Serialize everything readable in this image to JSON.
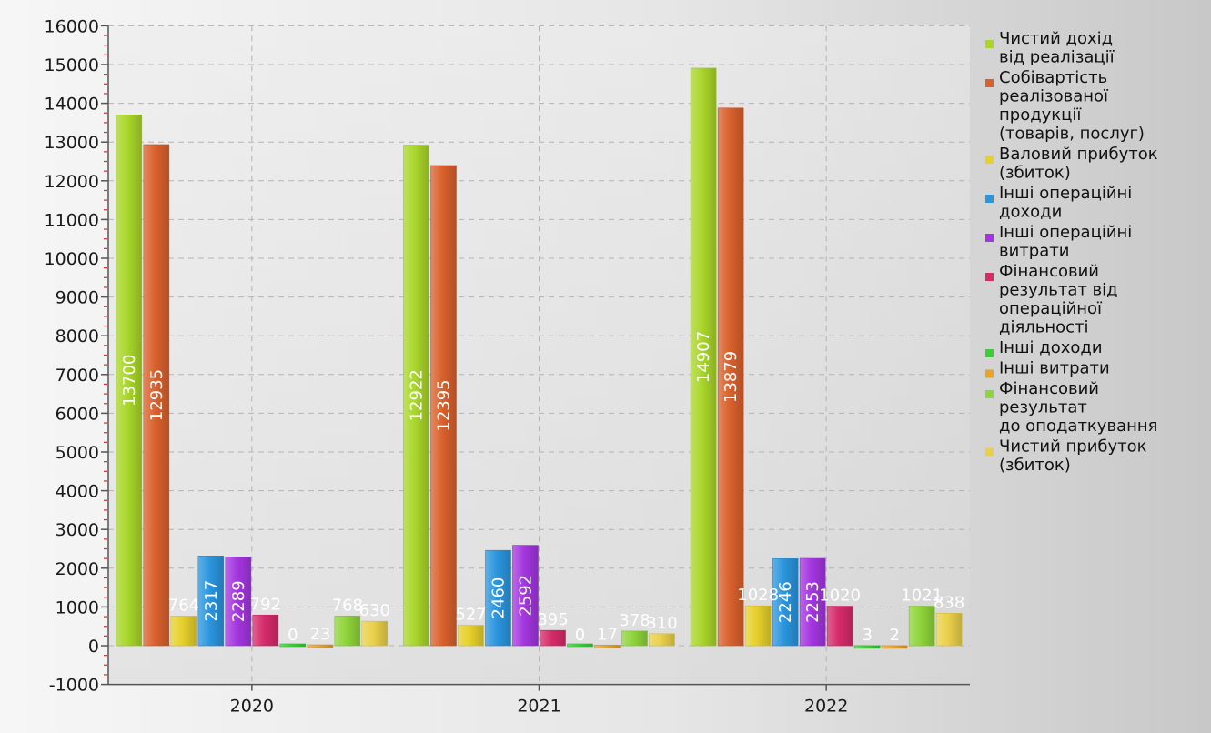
{
  "chart_data": {
    "type": "bar",
    "categories": [
      "2020",
      "2021",
      "2022"
    ],
    "ylim": [
      -1000,
      16000
    ],
    "yticks": [
      -1000,
      0,
      1000,
      2000,
      3000,
      4000,
      5000,
      6000,
      7000,
      8000,
      9000,
      10000,
      11000,
      12000,
      13000,
      14000,
      15000,
      16000
    ],
    "grid": true,
    "legend_position": "right",
    "series": [
      {
        "name": "Чистий дохід\nвід реалізації",
        "color": "#a9d62a",
        "values": [
          13700,
          12922,
          14907
        ]
      },
      {
        "name": "Собівартість\nреалізованої\nпродукції\n(товарів, послуг)",
        "color": "#d9612d",
        "values": [
          12935,
          12395,
          13879
        ]
      },
      {
        "name": "Валовий прибуток\n(збиток)",
        "color": "#e6d02c",
        "values": [
          764,
          527,
          1028
        ]
      },
      {
        "name": "Інші операційні\nдоходи",
        "color": "#2b95dd",
        "values": [
          2317,
          2460,
          2246
        ]
      },
      {
        "name": "Інші операційні\nвитрати",
        "color": "#a436e0",
        "values": [
          2289,
          2592,
          2253
        ]
      },
      {
        "name": "Фінансовий\nрезультат від\nопераційної\nдіяльності",
        "color": "#d62b6a",
        "values": [
          792,
          395,
          1020
        ]
      },
      {
        "name": "Інші доходи",
        "color": "#3ecc3e",
        "values": [
          0,
          0,
          3
        ]
      },
      {
        "name": "Інші витрати",
        "color": "#e8a32b",
        "values": [
          23,
          17,
          2
        ]
      },
      {
        "name": "Фінансовий\nрезультат\nдо оподаткування",
        "color": "#8fd43a",
        "values": [
          768,
          378,
          1021
        ]
      },
      {
        "name": "Чистий прибуток\n(збиток)",
        "color": "#ead04a",
        "values": [
          630,
          310,
          838
        ]
      }
    ]
  }
}
